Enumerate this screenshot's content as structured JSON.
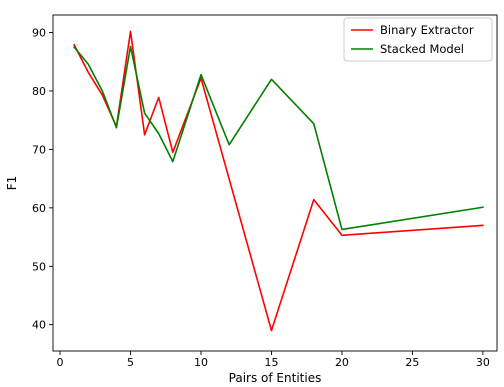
{
  "chart_data": {
    "type": "line",
    "title": "",
    "xlabel": "Pairs of Entities",
    "ylabel": "F1",
    "xlim": [
      -0.5,
      31.0
    ],
    "ylim": [
      35.5,
      93.0
    ],
    "xticks": [
      0,
      5,
      10,
      15,
      20,
      25,
      30
    ],
    "yticks": [
      40,
      50,
      60,
      70,
      80,
      90
    ],
    "grid": false,
    "legend_position": "top-right",
    "series": [
      {
        "name": "Binary Extractor",
        "color": "#ff0000",
        "x": [
          1,
          2,
          3,
          4,
          5,
          6,
          7,
          8,
          10,
          15,
          18,
          20,
          30
        ],
        "y": [
          87.9,
          83.2,
          79.3,
          73.9,
          90.2,
          72.5,
          78.9,
          69.5,
          82.2,
          39.0,
          61.4,
          55.3,
          57.0
        ]
      },
      {
        "name": "Stacked Model",
        "color": "#008000",
        "x": [
          1,
          2,
          3,
          4,
          5,
          6,
          7,
          8,
          10,
          12,
          15,
          18,
          20,
          30
        ],
        "y": [
          87.5,
          84.6,
          80.0,
          73.7,
          87.6,
          76.2,
          72.7,
          67.9,
          82.8,
          70.8,
          82.0,
          74.4,
          56.3,
          60.1
        ]
      }
    ]
  }
}
